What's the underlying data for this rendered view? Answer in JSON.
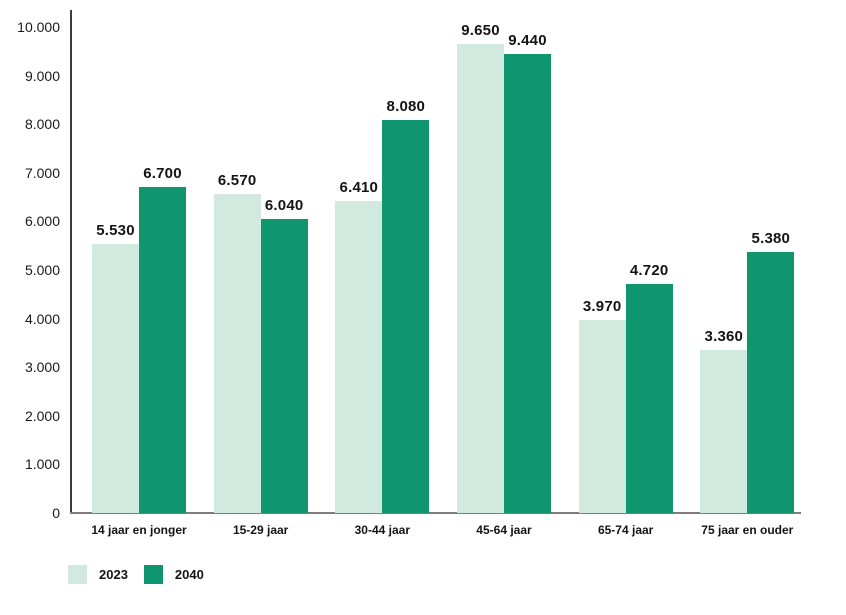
{
  "chart_data": {
    "type": "bar",
    "title": "",
    "xlabel": "",
    "ylabel": "",
    "categories": [
      "14 jaar en jonger",
      "15-29 jaar",
      "30-44 jaar",
      "45-64 jaar",
      "65-74 jaar",
      "75 jaar en ouder"
    ],
    "series": [
      {
        "name": "2023",
        "color": "#d2e9df",
        "values": [
          5530,
          6570,
          6410,
          9650,
          3970,
          3360
        ],
        "labels": [
          "5.530",
          "6.570",
          "6.410",
          "9.650",
          "3.970",
          "3.360"
        ]
      },
      {
        "name": "2040",
        "color": "#10966e",
        "values": [
          6700,
          6040,
          8080,
          9440,
          4720,
          5380
        ],
        "labels": [
          "6.700",
          "6.040",
          "8.080",
          "9.440",
          "4.720",
          "5.380"
        ]
      }
    ],
    "ylim": [
      0,
      10000
    ],
    "ytick_step": 1000,
    "ytick_labels": [
      "0",
      "1.000",
      "2.000",
      "3.000",
      "4.000",
      "5.000",
      "6.000",
      "7.000",
      "8.000",
      "9.000",
      "10.000"
    ],
    "grid": false,
    "legend_position": "bottom-left"
  },
  "legend": {
    "items": [
      {
        "label": "2023",
        "color": "#d2e9df"
      },
      {
        "label": "2040",
        "color": "#10966e"
      }
    ]
  },
  "colors": {
    "series_2023": "#d2e9df",
    "series_2040": "#10966e",
    "y_axis_line": "#3c3c3c",
    "x_axis_line": "#7d7d7d",
    "text": "#141414",
    "background": "#ffffff"
  }
}
